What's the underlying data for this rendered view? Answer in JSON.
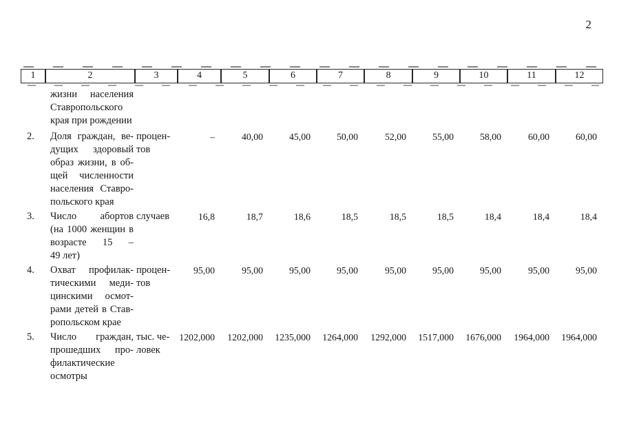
{
  "page": {
    "number": "2"
  },
  "table": {
    "header_cols": [
      "1",
      "2",
      "3",
      "4",
      "5",
      "6",
      "7",
      "8",
      "9",
      "10",
      "11",
      "12"
    ],
    "continuation_row": {
      "lines": [
        "жизни населения",
        "Ставропольского",
        "края при рождении"
      ]
    },
    "rows": [
      {
        "num": "2.",
        "name_lines": [
          "Доля граждан, ве-",
          "дущих здоровый",
          "образ жизни, в об-",
          "щей численности",
          "населения Ставро-",
          "польского края"
        ],
        "unit_lines": [
          "процен-",
          "тов"
        ],
        "values": [
          "–",
          "40,00",
          "45,00",
          "50,00",
          "52,00",
          "55,00",
          "58,00",
          "60,00",
          "60,00"
        ]
      },
      {
        "num": "3.",
        "name_lines": [
          "Число абортов",
          "(на 1000 женщин в",
          "возрасте 15 –",
          "49 лет)"
        ],
        "unit_lines": [
          "случаев"
        ],
        "values": [
          "16,8",
          "18,7",
          "18,6",
          "18,5",
          "18,5",
          "18,5",
          "18,4",
          "18,4",
          "18,4"
        ]
      },
      {
        "num": "4.",
        "name_lines": [
          "Охват профилак-",
          "тическими меди-",
          "цинскими осмот-",
          "рами детей в Став-",
          "ропольском крае"
        ],
        "unit_lines": [
          "процен-",
          "тов"
        ],
        "values": [
          "95,00",
          "95,00",
          "95,00",
          "95,00",
          "95,00",
          "95,00",
          "95,00",
          "95,00",
          "95,00"
        ]
      },
      {
        "num": "5.",
        "name_lines": [
          "Число граждан,",
          "прошедших про-",
          "филактические",
          "осмотры"
        ],
        "unit_lines": [
          "тыс. че-",
          "ловек"
        ],
        "values": [
          "1202,000",
          "1202,000",
          "1235,000",
          "1264,000",
          "1292,000",
          "1517,000",
          "1676,000",
          "1964,000",
          "1964,000"
        ]
      }
    ]
  }
}
